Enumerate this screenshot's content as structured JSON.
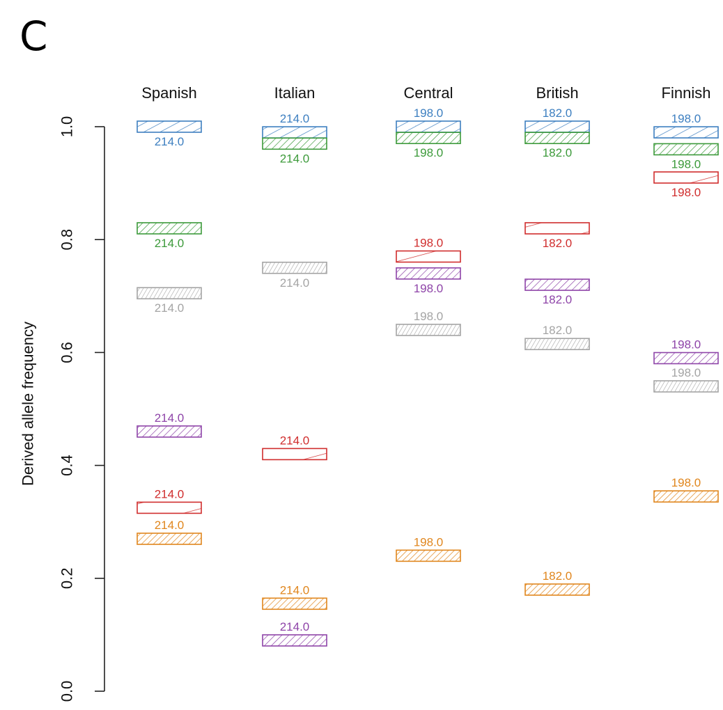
{
  "panel_label": "C",
  "chart_data": {
    "type": "scatter",
    "title": "",
    "xlabel": "",
    "ylabel": "Derived allele frequency",
    "ylim": [
      0.0,
      1.0
    ],
    "yticks": [
      "0.0",
      "0.2",
      "0.4",
      "0.6",
      "0.8",
      "1.0"
    ],
    "grid": false,
    "categories": [
      "Spanish",
      "Italian",
      "Central",
      "British",
      "Finnish"
    ],
    "colors": {
      "blue": "#3d7fc0",
      "green": "#3c9a3a",
      "gray": "#a4a4a4",
      "purple": "#8e44a8",
      "red": "#d02d2d",
      "orange": "#e0861d"
    },
    "series": [
      {
        "color": "blue",
        "points": [
          {
            "category": "Spanish",
            "y": 1.0,
            "label": "214.0"
          },
          {
            "category": "Italian",
            "y": 0.99,
            "label": "214.0"
          },
          {
            "category": "Central",
            "y": 1.0,
            "label": "198.0"
          },
          {
            "category": "British",
            "y": 1.0,
            "label": "182.0"
          },
          {
            "category": "Finnish",
            "y": 0.99,
            "label": "198.0"
          }
        ]
      },
      {
        "color": "green",
        "points": [
          {
            "category": "Spanish",
            "y": 0.82,
            "label": "214.0"
          },
          {
            "category": "Italian",
            "y": 0.97,
            "label": "214.0"
          },
          {
            "category": "Central",
            "y": 0.98,
            "label": "198.0"
          },
          {
            "category": "British",
            "y": 0.98,
            "label": "182.0"
          },
          {
            "category": "Finnish",
            "y": 0.96,
            "label": "198.0"
          }
        ]
      },
      {
        "color": "gray",
        "points": [
          {
            "category": "Spanish",
            "y": 0.705,
            "label": "214.0"
          },
          {
            "category": "Italian",
            "y": 0.75,
            "label": "214.0"
          },
          {
            "category": "Central",
            "y": 0.64,
            "label": "198.0"
          },
          {
            "category": "British",
            "y": 0.615,
            "label": "182.0"
          },
          {
            "category": "Finnish",
            "y": 0.54,
            "label": "198.0"
          }
        ]
      },
      {
        "color": "purple",
        "points": [
          {
            "category": "Spanish",
            "y": 0.46,
            "label": "214.0"
          },
          {
            "category": "Italian",
            "y": 0.09,
            "label": "214.0"
          },
          {
            "category": "Central",
            "y": 0.74,
            "label": "198.0"
          },
          {
            "category": "British",
            "y": 0.72,
            "label": "182.0"
          },
          {
            "category": "Finnish",
            "y": 0.59,
            "label": "198.0"
          }
        ]
      },
      {
        "color": "red",
        "points": [
          {
            "category": "Spanish",
            "y": 0.325,
            "label": "214.0"
          },
          {
            "category": "Italian",
            "y": 0.42,
            "label": "214.0"
          },
          {
            "category": "Central",
            "y": 0.77,
            "label": "198.0"
          },
          {
            "category": "British",
            "y": 0.82,
            "label": "182.0"
          },
          {
            "category": "Finnish",
            "y": 0.91,
            "label": "198.0"
          }
        ]
      },
      {
        "color": "orange",
        "points": [
          {
            "category": "Spanish",
            "y": 0.27,
            "label": "214.0"
          },
          {
            "category": "Italian",
            "y": 0.155,
            "label": "214.0"
          },
          {
            "category": "Central",
            "y": 0.24,
            "label": "198.0"
          },
          {
            "category": "British",
            "y": 0.18,
            "label": "182.0"
          },
          {
            "category": "Finnish",
            "y": 0.345,
            "label": "198.0"
          }
        ]
      }
    ]
  }
}
